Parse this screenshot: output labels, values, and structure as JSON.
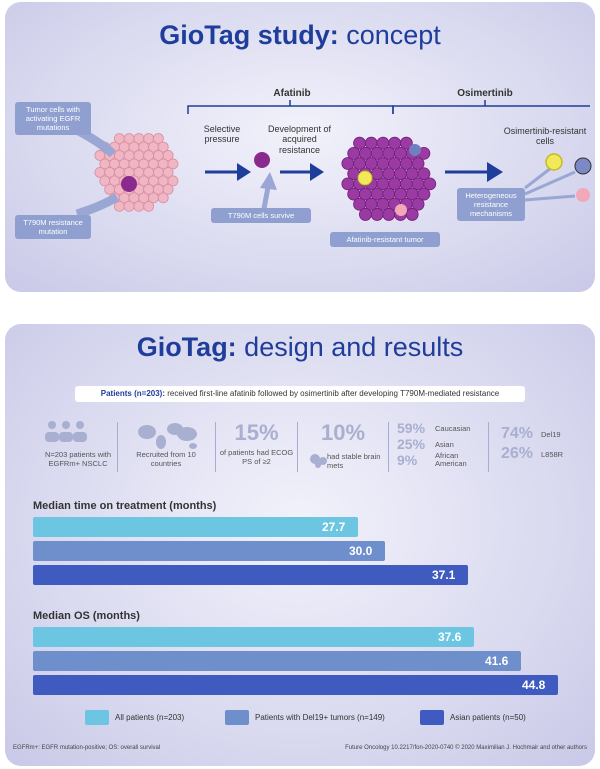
{
  "concept": {
    "title_bold": "GioTag study:",
    "title_rest": " concept",
    "afatinib": "Afatinib",
    "osimertinib": "Osimertinib",
    "box_tumor_cells": "Tumor cells with activating EGFR mutations",
    "box_t790m": "T790M resistance mutation",
    "selective_pressure": "Selective pressure",
    "development": "Development of acquired resistance",
    "box_t790m_survive": "T790M cells survive",
    "box_afatinib_resistant": "Afatinib-resistant tumor",
    "osimertinib_resistant": "Osimertinib-resistant cells",
    "box_heterogeneous": "Heterogeneous resistance mechanisms"
  },
  "design": {
    "title_bold": "GioTag:",
    "title_rest": " design and results",
    "banner_bold": "Patients (n=203):",
    "banner_rest": " received first-line afatinib followed by osimertinib after developing T790M-mediated resistance",
    "stat_patients": "N=203 patients with EGFRm+ NSCLC",
    "stat_countries": "Recruited from 10 countries",
    "stat_ecog_big": "15%",
    "stat_ecog": "of patients had ECOG PS of ≥2",
    "stat_brain_big": "10%",
    "stat_brain": "had stable brain mets",
    "eth": [
      {
        "pct": "59%",
        "label": "Caucasian"
      },
      {
        "pct": "25%",
        "label": "Asian"
      },
      {
        "pct": "9%",
        "label": "African American"
      }
    ],
    "mut": [
      {
        "pct": "74%",
        "label": "Del19"
      },
      {
        "pct": "26%",
        "label": "L858R"
      }
    ],
    "footnote_left": "EGFRm+: EGFR mutation-positive; OS: overall survival",
    "footnote_right": "Future Oncology 10.2217/fon-2020-0740 © 2020 Maximilian J. Hochmair and other authors"
  },
  "chart_data": {
    "type": "bar",
    "orientation": "horizontal",
    "series_names": [
      "All patients (n=203)",
      "Patients with Del19+ tumors (n=149)",
      "Asian patients (n=50)"
    ],
    "colors": [
      "#6cc6e2",
      "#6e8ecc",
      "#3f5bbf"
    ],
    "groups": [
      {
        "title": "Median time on treatment (months)",
        "values": [
          27.7,
          30.0,
          37.1
        ],
        "labels": [
          "27.7",
          "30.0",
          "37.1"
        ]
      },
      {
        "title": "Median OS (months)",
        "values": [
          37.6,
          41.6,
          44.8
        ],
        "labels": [
          "37.6",
          "41.6",
          "44.8"
        ]
      }
    ]
  }
}
